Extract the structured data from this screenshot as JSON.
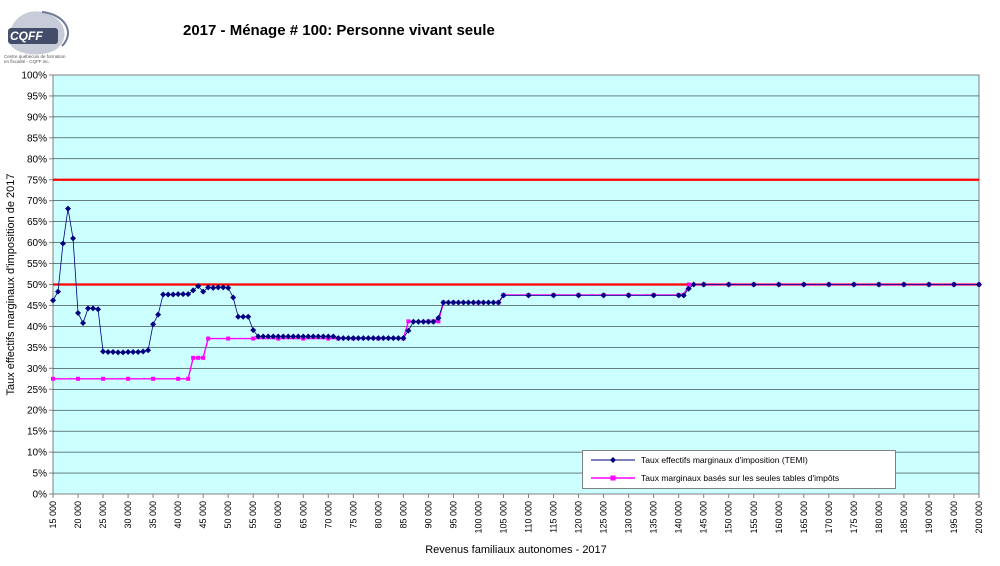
{
  "logo": {
    "text": "CQFF",
    "caption_line1": "Centre québécois de formation",
    "caption_line2": "en fiscalité - CQFF inc."
  },
  "chart_data": {
    "type": "line",
    "title": "2017 - Ménage # 100: Personne vivant seule",
    "xlabel": "Revenus familiaux autonomes - 2017",
    "ylabel": "Taux effectifs marginaux d'imposition de 2017",
    "xlim": [
      15000,
      200000
    ],
    "ylim": [
      0,
      1
    ],
    "x_ticks": [
      "15 000",
      "20 000",
      "25 000",
      "30 000",
      "35 000",
      "40 000",
      "45 000",
      "50 000",
      "55 000",
      "60 000",
      "65 000",
      "70 000",
      "75 000",
      "80 000",
      "85 000",
      "90 000",
      "95 000",
      "100 000",
      "105 000",
      "110 000",
      "115 000",
      "120 000",
      "125 000",
      "130 000",
      "135 000",
      "140 000",
      "145 000",
      "150 000",
      "155 000",
      "160 000",
      "165 000",
      "170 000",
      "175 000",
      "180 000",
      "185 000",
      "190 000",
      "195 000",
      "200 000"
    ],
    "y_ticks": [
      "0%",
      "5%",
      "10%",
      "15%",
      "20%",
      "25%",
      "30%",
      "35%",
      "40%",
      "45%",
      "50%",
      "55%",
      "60%",
      "65%",
      "70%",
      "75%",
      "80%",
      "85%",
      "90%",
      "95%",
      "100%"
    ],
    "grid": true,
    "background": "#ccffff",
    "reference_lines": [
      {
        "y": 0.75,
        "color": "#ff0000"
      },
      {
        "y": 0.5,
        "color": "#ff0000"
      }
    ],
    "series": [
      {
        "name": "Taux effectifs marginaux d'imposition (TEMI)",
        "color": "#000080",
        "marker": "diamond",
        "points": [
          [
            15000,
            0.462
          ],
          [
            16000,
            0.483
          ],
          [
            17000,
            0.598
          ],
          [
            18000,
            0.681
          ],
          [
            19000,
            0.61
          ],
          [
            20000,
            0.432
          ],
          [
            21000,
            0.408
          ],
          [
            22000,
            0.443
          ],
          [
            23000,
            0.443
          ],
          [
            24000,
            0.441
          ],
          [
            25000,
            0.34
          ],
          [
            26000,
            0.339
          ],
          [
            27000,
            0.339
          ],
          [
            28000,
            0.338
          ],
          [
            29000,
            0.338
          ],
          [
            30000,
            0.339
          ],
          [
            31000,
            0.339
          ],
          [
            32000,
            0.339
          ],
          [
            33000,
            0.34
          ],
          [
            34000,
            0.343
          ],
          [
            35000,
            0.405
          ],
          [
            36000,
            0.428
          ],
          [
            37000,
            0.476
          ],
          [
            38000,
            0.476
          ],
          [
            39000,
            0.476
          ],
          [
            40000,
            0.477
          ],
          [
            41000,
            0.477
          ],
          [
            42000,
            0.477
          ],
          [
            43000,
            0.486
          ],
          [
            44000,
            0.496
          ],
          [
            45000,
            0.483
          ],
          [
            46000,
            0.493
          ],
          [
            47000,
            0.492
          ],
          [
            48000,
            0.493
          ],
          [
            49000,
            0.493
          ],
          [
            50000,
            0.492
          ],
          [
            51000,
            0.469
          ],
          [
            52000,
            0.423
          ],
          [
            53000,
            0.423
          ],
          [
            54000,
            0.423
          ],
          [
            55000,
            0.391
          ],
          [
            56000,
            0.376
          ],
          [
            57000,
            0.376
          ],
          [
            58000,
            0.376
          ],
          [
            59000,
            0.376
          ],
          [
            60000,
            0.376
          ],
          [
            61000,
            0.376
          ],
          [
            62000,
            0.376
          ],
          [
            63000,
            0.376
          ],
          [
            64000,
            0.376
          ],
          [
            65000,
            0.376
          ],
          [
            66000,
            0.376
          ],
          [
            67000,
            0.376
          ],
          [
            68000,
            0.376
          ],
          [
            69000,
            0.376
          ],
          [
            70000,
            0.376
          ],
          [
            71000,
            0.376
          ],
          [
            72000,
            0.372
          ],
          [
            73000,
            0.372
          ],
          [
            74000,
            0.372
          ],
          [
            75000,
            0.372
          ],
          [
            76000,
            0.372
          ],
          [
            77000,
            0.372
          ],
          [
            78000,
            0.372
          ],
          [
            79000,
            0.372
          ],
          [
            80000,
            0.372
          ],
          [
            81000,
            0.372
          ],
          [
            82000,
            0.372
          ],
          [
            83000,
            0.372
          ],
          [
            84000,
            0.372
          ],
          [
            85000,
            0.372
          ],
          [
            86000,
            0.39
          ],
          [
            87000,
            0.411
          ],
          [
            88000,
            0.411
          ],
          [
            89000,
            0.411
          ],
          [
            90000,
            0.411
          ],
          [
            91000,
            0.411
          ],
          [
            92000,
            0.42
          ],
          [
            93000,
            0.457
          ],
          [
            94000,
            0.457
          ],
          [
            95000,
            0.457
          ],
          [
            96000,
            0.457
          ],
          [
            97000,
            0.457
          ],
          [
            98000,
            0.457
          ],
          [
            99000,
            0.457
          ],
          [
            100000,
            0.457
          ],
          [
            101000,
            0.457
          ],
          [
            102000,
            0.457
          ],
          [
            103000,
            0.457
          ],
          [
            104000,
            0.457
          ],
          [
            105000,
            0.474
          ],
          [
            110000,
            0.474
          ],
          [
            115000,
            0.474
          ],
          [
            120000,
            0.474
          ],
          [
            125000,
            0.474
          ],
          [
            130000,
            0.474
          ],
          [
            135000,
            0.474
          ],
          [
            140000,
            0.474
          ],
          [
            141000,
            0.474
          ],
          [
            142000,
            0.49
          ],
          [
            143000,
            0.5
          ],
          [
            145000,
            0.5
          ],
          [
            150000,
            0.5
          ],
          [
            155000,
            0.5
          ],
          [
            160000,
            0.5
          ],
          [
            165000,
            0.5
          ],
          [
            170000,
            0.5
          ],
          [
            175000,
            0.5
          ],
          [
            180000,
            0.5
          ],
          [
            185000,
            0.5
          ],
          [
            190000,
            0.5
          ],
          [
            195000,
            0.5
          ],
          [
            200000,
            0.5
          ]
        ]
      },
      {
        "name": "Taux marginaux basés sur les seules tables d'impôts",
        "color": "#ff00ff",
        "marker": "square",
        "points": [
          [
            15000,
            0.275
          ],
          [
            20000,
            0.275
          ],
          [
            25000,
            0.275
          ],
          [
            30000,
            0.275
          ],
          [
            35000,
            0.275
          ],
          [
            40000,
            0.275
          ],
          [
            42000,
            0.275
          ],
          [
            43000,
            0.325
          ],
          [
            44000,
            0.325
          ],
          [
            45000,
            0.325
          ],
          [
            46000,
            0.371
          ],
          [
            50000,
            0.371
          ],
          [
            55000,
            0.371
          ],
          [
            60000,
            0.371
          ],
          [
            65000,
            0.371
          ],
          [
            70000,
            0.371
          ],
          [
            72000,
            0.371
          ],
          [
            75000,
            0.371
          ],
          [
            80000,
            0.371
          ],
          [
            85000,
            0.371
          ],
          [
            86000,
            0.412
          ],
          [
            90000,
            0.412
          ],
          [
            91000,
            0.412
          ],
          [
            92000,
            0.412
          ],
          [
            93000,
            0.457
          ],
          [
            95000,
            0.457
          ],
          [
            100000,
            0.457
          ],
          [
            104000,
            0.457
          ],
          [
            105000,
            0.475
          ],
          [
            110000,
            0.475
          ],
          [
            115000,
            0.475
          ],
          [
            120000,
            0.475
          ],
          [
            125000,
            0.475
          ],
          [
            130000,
            0.475
          ],
          [
            135000,
            0.475
          ],
          [
            140000,
            0.475
          ],
          [
            141000,
            0.475
          ],
          [
            142000,
            0.5
          ],
          [
            145000,
            0.5
          ],
          [
            150000,
            0.5
          ],
          [
            155000,
            0.5
          ],
          [
            160000,
            0.5
          ],
          [
            165000,
            0.5
          ],
          [
            170000,
            0.5
          ],
          [
            175000,
            0.5
          ],
          [
            180000,
            0.5
          ],
          [
            185000,
            0.5
          ],
          [
            190000,
            0.5
          ],
          [
            195000,
            0.5
          ],
          [
            200000,
            0.5
          ]
        ]
      }
    ]
  }
}
